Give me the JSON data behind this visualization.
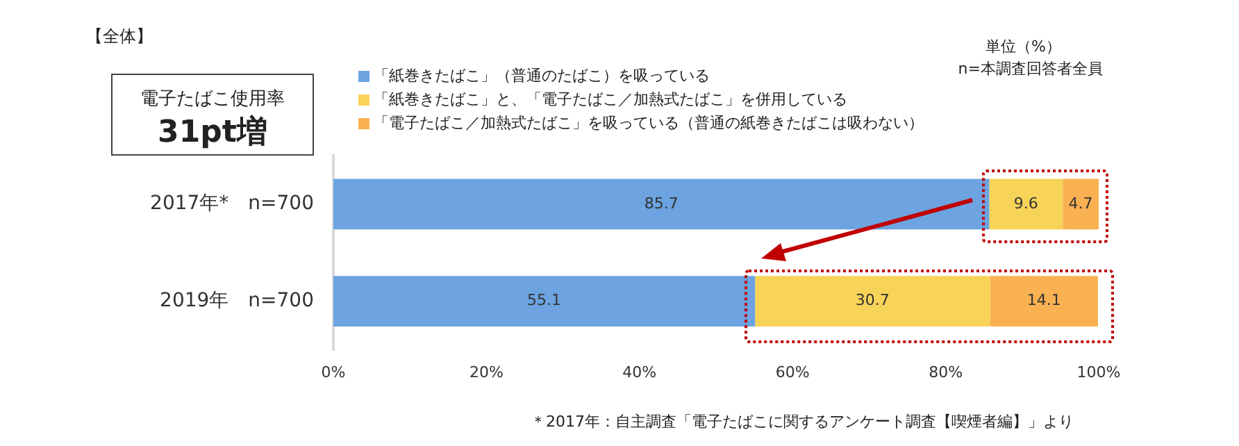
{
  "chart_data": {
    "type": "bar",
    "orientation": "horizontal",
    "stacked": true,
    "categories": [
      "2017年*　n=700",
      "2019年　n=700"
    ],
    "series": [
      {
        "name": "「紙巻きたばこ」（普通のたばこ）を吸っている",
        "color": "#6ca3e0",
        "values": [
          85.7,
          55.1
        ]
      },
      {
        "name": "「紙巻きたばこ」と、「電子たばこ／加熱式たばこ」を併用している",
        "color": "#f7d358",
        "values": [
          9.6,
          30.7
        ]
      },
      {
        "name": "「電子たばこ／加熱式たばこ」を吸っている（普通の紙巻きたばこは吸わない）",
        "color": "#f9b152",
        "values": [
          4.7,
          14.1
        ]
      }
    ],
    "xlim": [
      0,
      100
    ],
    "xticks": [
      {
        "value": 0,
        "label": "0%"
      },
      {
        "value": 20,
        "label": "20%"
      },
      {
        "value": 40,
        "label": "40%"
      },
      {
        "value": 60,
        "label": "60%"
      },
      {
        "value": 80,
        "label": "80%"
      },
      {
        "value": 100,
        "label": "100%"
      }
    ],
    "data_labels": true,
    "grid": false,
    "legend": "top",
    "annotations": [
      "【全体】",
      "単位（%）",
      "n=本調査回答者全員",
      "電子たばこ使用率",
      "31pt増",
      "＊2017年：自主調査「電子たばこに関するアンケート調査【喫煙者編】」より"
    ]
  }
}
